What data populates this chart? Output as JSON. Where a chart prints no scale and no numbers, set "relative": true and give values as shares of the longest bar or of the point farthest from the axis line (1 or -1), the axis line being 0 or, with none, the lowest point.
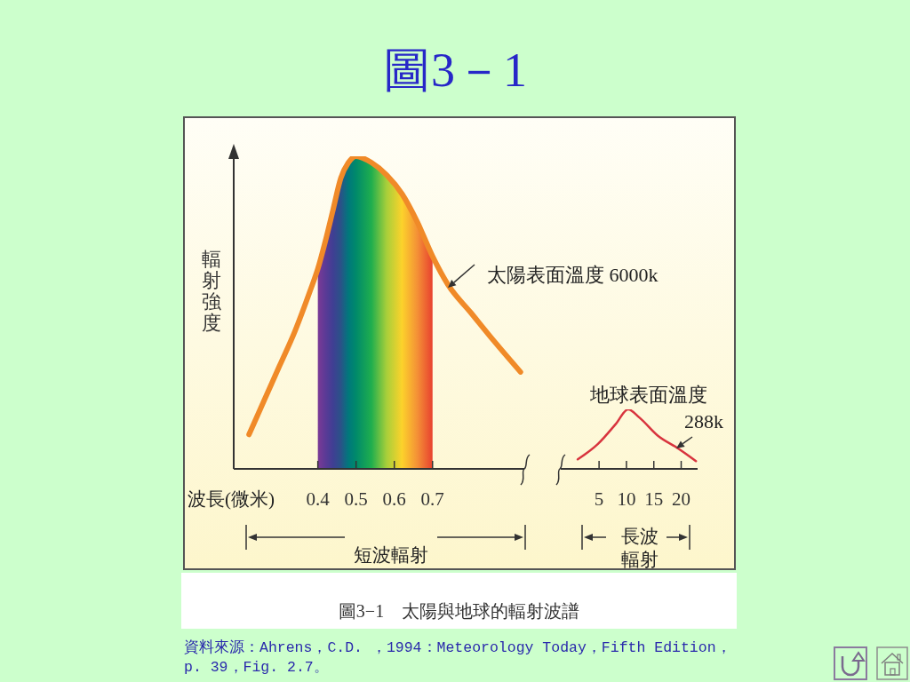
{
  "chart_data": [
    {
      "type": "line",
      "title": "圖3－1",
      "xlabel": "波長(微米)",
      "ylabel": "輻射強度",
      "annotations": [
        "短波輻射",
        "圖3−1　太陽與地球的輻射波譜",
        "資料來源：Ahrens，C.D. ，1994：Meteorology Today，Fifth Edition，p. 39，Fig. 2.7。"
      ],
      "xlim": [
        0.18,
        0.94
      ],
      "xticks": [
        0.4,
        0.5,
        0.6,
        0.7
      ],
      "relative": true,
      "series": [
        {
          "type": "area",
          "x": [
            0.4,
            0.42,
            0.44,
            0.46,
            0.48,
            0.5,
            0.54,
            0.58,
            0.62,
            0.66,
            0.7
          ],
          "values": [
            0.64,
            0.73,
            0.83,
            0.93,
            0.98,
            1,
            0.98,
            0.94,
            0.88,
            0.79,
            0.68
          ],
          "colors": [
            "#7b3a96",
            "#5b3a96",
            "#3f3f93",
            "#2a5288",
            "#00787c",
            "#008a6a",
            "#1fae4e",
            "#a8cf3a",
            "#fcd22b",
            "#f49136",
            "#e8412f"
          ]
        },
        {
          "name": "太陽表面溫度 6000k",
          "color": "#f08a28",
          "x": [
            0.22,
            0.26,
            0.3,
            0.34,
            0.38,
            0.4,
            0.42,
            0.44,
            0.46,
            0.48,
            0.5,
            0.54,
            0.58,
            0.62,
            0.66,
            0.7,
            0.74,
            0.8,
            0.86,
            0.93
          ],
          "values": [
            0.11,
            0.22,
            0.33,
            0.44,
            0.57,
            0.64,
            0.73,
            0.83,
            0.93,
            0.98,
            1,
            0.98,
            0.94,
            0.88,
            0.79,
            0.68,
            0.59,
            0.5,
            0.41,
            0.31
          ]
        }
      ]
    },
    {
      "type": "line",
      "annotations": [
        "長波輻射"
      ],
      "xlim": [
        -2,
        23
      ],
      "xticks": [
        5,
        10,
        15,
        20
      ],
      "relative": true,
      "series": [
        {
          "name": "地球表面溫度 288k",
          "color": "#d8343e",
          "x": [
            1.1,
            4.8,
            8.1,
            10.3,
            12.4,
            15.7,
            19.5,
            22.7
          ],
          "values": [
            0.16,
            0.42,
            0.76,
            1,
            0.86,
            0.56,
            0.34,
            0.13
          ]
        }
      ]
    }
  ]
}
